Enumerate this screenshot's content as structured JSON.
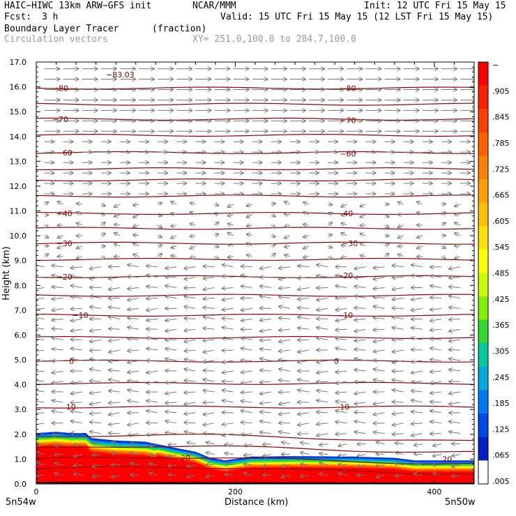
{
  "header": {
    "model": "HAIC−HIWC 13km ARW−GFS init",
    "center": "NCAR/MMM",
    "init": "Init: 12 UTC Fri 15 May 15",
    "fcst_label": "Fcst:",
    "fcst_value": "3 h",
    "valid": "Valid: 15 UTC Fri 15 May 15 (12 LST Fri 15 May 15)",
    "field1": "Boundary Layer Tracer",
    "field1_units": "(fraction)",
    "field2": "Circulation vectors",
    "xy": "XY= 251.0,100.0 to 284.7,100.0"
  },
  "chart_data": {
    "type": "heatmap",
    "title": "Boundary Layer Tracer (fraction)",
    "xlabel": "Distance (km)",
    "ylabel": "Height (km)",
    "xlim": [
      0,
      440
    ],
    "ylim": [
      0,
      17
    ],
    "x_ticks": [
      0,
      200,
      400
    ],
    "y_ticks": [
      0.0,
      1.0,
      2.0,
      3.0,
      4.0,
      5.0,
      6.0,
      7.0,
      8.0,
      9.0,
      10.0,
      11.0,
      12.0,
      13.0,
      14.0,
      15.0,
      16.0,
      17.0
    ],
    "y_tick_labels": [
      "0.0",
      "1.0",
      "2.0",
      "3.0",
      "4.0",
      "5.0",
      "6.0",
      "7.0",
      "8.0",
      "9.0",
      "10.0",
      "11.0",
      "12.0",
      "13.0",
      "14.0",
      "15.0",
      "16.0",
      "17.0"
    ],
    "x_end_labels": {
      "left": "5n54w",
      "right": "5n50w"
    },
    "colorbar": {
      "labels": [
        "−",
        ".905",
        ".845",
        ".785",
        ".725",
        ".665",
        ".605",
        ".545",
        ".485",
        ".425",
        ".365",
        ".305",
        ".245",
        ".185",
        ".125",
        ".065",
        ".005"
      ],
      "colors": [
        "#ff0000",
        "#ff2000",
        "#ff4000",
        "#ff6000",
        "#ff8000",
        "#ffa000",
        "#ffc000",
        "#ffe000",
        "#ffff00",
        "#c8ff00",
        "#80f000",
        "#30d830",
        "#00c8a0",
        "#00a8e0",
        "#0078f0",
        "#0048e8",
        "#0020c8",
        "#ffffff"
      ]
    },
    "tracer_top_km": [
      [
        0,
        2.05
      ],
      [
        20,
        2.1
      ],
      [
        35,
        2.05
      ],
      [
        50,
        2.05
      ],
      [
        55,
        1.85
      ],
      [
        80,
        1.75
      ],
      [
        110,
        1.7
      ],
      [
        140,
        1.45
      ],
      [
        160,
        1.3
      ],
      [
        175,
        1.05
      ],
      [
        190,
        0.95
      ],
      [
        215,
        1.1
      ],
      [
        260,
        1.12
      ],
      [
        320,
        1.1
      ],
      [
        360,
        1.05
      ],
      [
        380,
        0.95
      ],
      [
        440,
        0.95
      ]
    ],
    "temperature_contours": [
      {
        "label": "20",
        "x": 145,
        "y": 1.05
      },
      {
        "label": "20",
        "x": 408,
        "y": 1.0
      },
      {
        "label": "10",
        "x": 30,
        "y": 3.1
      },
      {
        "label": "10",
        "x": 305,
        "y": 3.1
      },
      {
        "label": "0",
        "x": 33,
        "y": 4.95
      },
      {
        "label": "0",
        "x": 299,
        "y": 4.95
      },
      {
        "label": "−10",
        "x": 36,
        "y": 6.8
      },
      {
        "label": "−10",
        "x": 302,
        "y": 6.8
      },
      {
        "label": "−20",
        "x": 20,
        "y": 8.35
      },
      {
        "label": "−20",
        "x": 302,
        "y": 8.4
      },
      {
        "label": "−30",
        "x": 20,
        "y": 9.7
      },
      {
        "label": "−30",
        "x": 307,
        "y": 9.7
      },
      {
        "label": "−40",
        "x": 20,
        "y": 10.9
      },
      {
        "label": "−40",
        "x": 302,
        "y": 10.9
      },
      {
        "label": "−60",
        "x": 20,
        "y": 13.35
      },
      {
        "label": "−60",
        "x": 305,
        "y": 13.3
      },
      {
        "label": "−70",
        "x": 16,
        "y": 14.7
      },
      {
        "label": "−70",
        "x": 305,
        "y": 14.65
      },
      {
        "label": "−80",
        "x": 16,
        "y": 15.95
      },
      {
        "label": "−80",
        "x": 305,
        "y": 15.95
      },
      {
        "label": "−83.03",
        "x": 70,
        "y": 16.5
      }
    ],
    "contour_levels_km": [
      0.6,
      1.0,
      1.45,
      1.9,
      3.1,
      4.05,
      4.95,
      5.9,
      6.8,
      7.6,
      8.35,
      9.05,
      9.7,
      10.3,
      10.9,
      11.6,
      12.25,
      12.7,
      13.35,
      14.05,
      14.7,
      15.3,
      15.95
    ],
    "wind_vector_bands": [
      {
        "from_km": 14.0,
        "to_km": 17.0,
        "direction": "east"
      },
      {
        "from_km": 11.3,
        "to_km": 14.0,
        "direction": "east"
      },
      {
        "from_km": 9.0,
        "to_km": 11.3,
        "direction": "variable"
      },
      {
        "from_km": 2.0,
        "to_km": 9.0,
        "direction": "west"
      },
      {
        "from_km": 0.0,
        "to_km": 2.0,
        "direction": "west"
      }
    ]
  }
}
